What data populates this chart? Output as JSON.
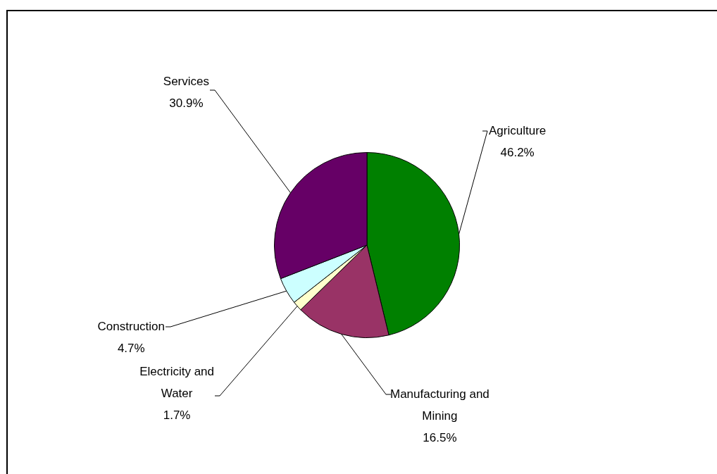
{
  "chart_data": {
    "type": "pie",
    "categories": [
      "Agriculture",
      "Manufacturing and Mining",
      "Electricity and Water",
      "Construction",
      "Services"
    ],
    "values": [
      46.2,
      16.5,
      1.7,
      4.7,
      30.9
    ],
    "colors": [
      "#008000",
      "#993366",
      "#ffffcc",
      "#ccffff",
      "#660066"
    ],
    "value_labels": [
      "46.2%",
      "16.5%",
      "1.7%",
      "4.7%",
      "30.9%"
    ],
    "legend": false
  }
}
